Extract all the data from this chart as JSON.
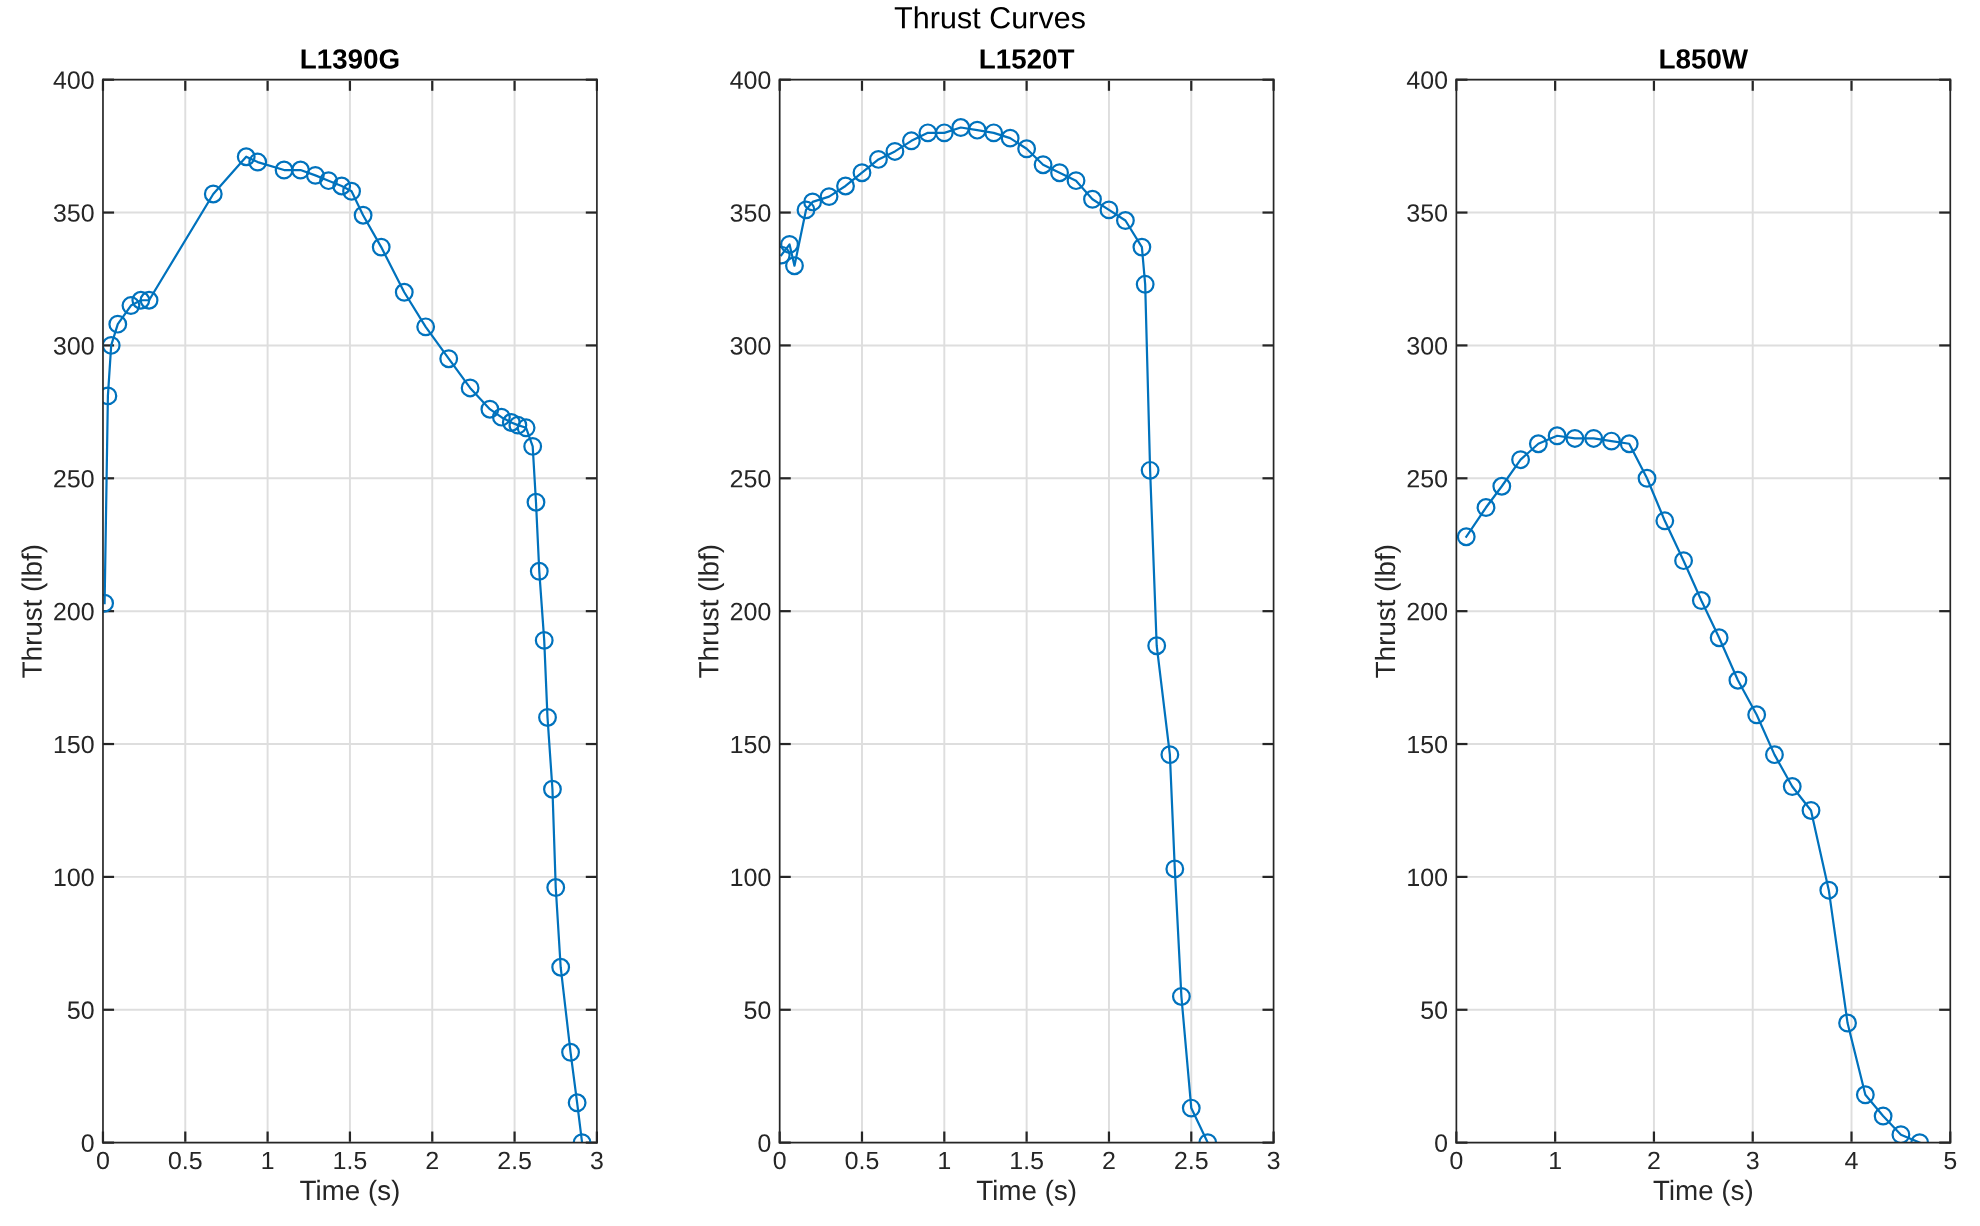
{
  "chart_data": [
    {
      "type": "line",
      "title": "L1390G",
      "xlabel": "Time (s)",
      "ylabel": "Thrust (lbf)",
      "annotations": [
        "Thrust Curves"
      ],
      "xlim": [
        0,
        3
      ],
      "ylim": [
        0,
        400
      ],
      "xticks": [
        0,
        0.5,
        1,
        1.5,
        2,
        2.5,
        3
      ],
      "yticks": [
        0,
        50,
        100,
        150,
        200,
        250,
        300,
        350,
        400
      ],
      "grid": true,
      "marker": "circle",
      "line_style": "solid",
      "series": [
        {
          "color": "#0072bd",
          "x": [
            0.01,
            0.03,
            0.05,
            0.09,
            0.17,
            0.23,
            0.28,
            0.67,
            0.87,
            0.94,
            1.1,
            1.2,
            1.29,
            1.37,
            1.45,
            1.51,
            1.58,
            1.69,
            1.83,
            1.96,
            2.1,
            2.23,
            2.35,
            2.42,
            2.48,
            2.52,
            2.57,
            2.61,
            2.63,
            2.65,
            2.68,
            2.7,
            2.73,
            2.75,
            2.78,
            2.84,
            2.88,
            2.91
          ],
          "values": [
            203,
            281,
            300,
            308,
            315,
            317,
            317,
            357,
            371,
            369,
            366,
            366,
            364,
            362,
            360,
            358,
            349,
            337,
            320,
            307,
            295,
            284,
            276,
            273,
            271,
            270,
            269,
            262,
            241,
            215,
            189,
            160,
            133,
            96,
            66,
            34,
            15,
            0
          ]
        }
      ]
    },
    {
      "type": "line",
      "title": "L1520T",
      "xlabel": "Time (s)",
      "ylabel": "Thrust (lbf)",
      "xlim": [
        0,
        3
      ],
      "ylim": [
        0,
        400
      ],
      "xticks": [
        0,
        0.5,
        1,
        1.5,
        2,
        2.5,
        3
      ],
      "yticks": [
        0,
        50,
        100,
        150,
        200,
        250,
        300,
        350,
        400
      ],
      "grid": true,
      "marker": "circle",
      "line_style": "solid",
      "series": [
        {
          "color": "#0072bd",
          "x": [
            0.01,
            0.06,
            0.09,
            0.16,
            0.2,
            0.3,
            0.4,
            0.5,
            0.6,
            0.7,
            0.8,
            0.9,
            1.0,
            1.1,
            1.2,
            1.3,
            1.4,
            1.5,
            1.6,
            1.7,
            1.8,
            1.9,
            2.0,
            2.1,
            2.2,
            2.22,
            2.25,
            2.29,
            2.37,
            2.4,
            2.44,
            2.5,
            2.6
          ],
          "values": [
            334,
            338,
            330,
            351,
            354,
            356,
            360,
            365,
            370,
            373,
            377,
            380,
            380,
            382,
            381,
            380,
            378,
            374,
            368,
            365,
            362,
            355,
            351,
            347,
            337,
            323,
            253,
            187,
            146,
            103,
            55,
            13,
            0
          ]
        }
      ]
    },
    {
      "type": "line",
      "title": "L850W",
      "xlabel": "Time (s)",
      "ylabel": "Thrust (lbf)",
      "xlim": [
        0,
        5
      ],
      "ylim": [
        0,
        400
      ],
      "xticks": [
        0,
        1,
        2,
        3,
        4,
        5
      ],
      "yticks": [
        0,
        50,
        100,
        150,
        200,
        250,
        300,
        350,
        400
      ],
      "grid": true,
      "marker": "circle",
      "line_style": "solid",
      "series": [
        {
          "color": "#0072bd",
          "x": [
            0.1,
            0.3,
            0.46,
            0.65,
            0.83,
            1.02,
            1.2,
            1.39,
            1.57,
            1.75,
            1.93,
            2.11,
            2.3,
            2.48,
            2.66,
            2.85,
            3.04,
            3.22,
            3.4,
            3.59,
            3.77,
            3.96,
            4.14,
            4.32,
            4.5,
            4.69
          ],
          "values": [
            228,
            239,
            247,
            257,
            263,
            266,
            265,
            265,
            264,
            263,
            250,
            234,
            219,
            204,
            190,
            174,
            161,
            146,
            134,
            125,
            95,
            45,
            18,
            10,
            3,
            0
          ]
        }
      ]
    }
  ]
}
